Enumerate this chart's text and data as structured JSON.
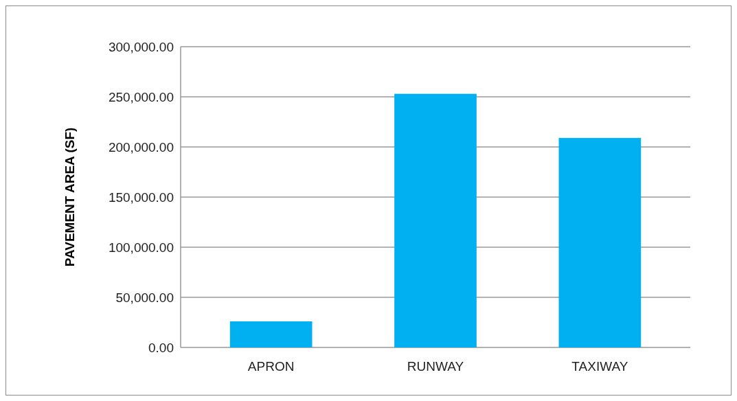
{
  "chart_data": {
    "type": "bar",
    "ylabel": "PAVEMENT AREA (SF)",
    "categories": [
      "APRON",
      "RUNWAY",
      "TAXIWAY"
    ],
    "values": [
      26000,
      253000,
      209000
    ],
    "color": "#00b0f0",
    "ylim": [
      0,
      300000
    ],
    "yticks": [
      {
        "value": 0,
        "label": "0.00"
      },
      {
        "value": 50000,
        "label": "50,000.00"
      },
      {
        "value": 100000,
        "label": "100,000.00"
      },
      {
        "value": 150000,
        "label": "150,000.00"
      },
      {
        "value": 200000,
        "label": "200,000.00"
      },
      {
        "value": 250000,
        "label": "250,000.00"
      },
      {
        "value": 300000,
        "label": "300,000.00"
      }
    ],
    "grid": "y"
  }
}
